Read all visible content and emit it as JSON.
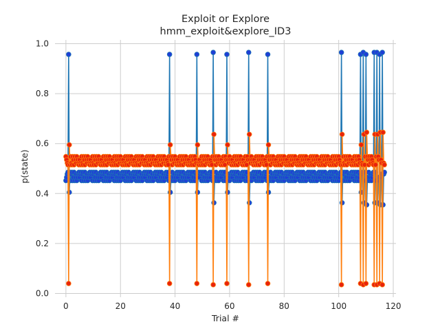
{
  "chart_data": {
    "type": "line",
    "title": "Exploit or Explore",
    "subtitle": "hmm_exploit&explore_ID3",
    "xlabel": "Trial #",
    "ylabel": "p(state)",
    "xlim": [
      -4,
      121
    ],
    "ylim": [
      -0.015,
      1.015
    ],
    "xticks": [
      0,
      20,
      40,
      60,
      80,
      100,
      120
    ],
    "yticks": [
      0.0,
      0.2,
      0.4,
      0.6,
      0.8,
      1.0
    ],
    "xtick_labels": [
      "0",
      "20",
      "40",
      "60",
      "80",
      "100",
      "120"
    ],
    "ytick_labels": [
      "0.0",
      "0.2",
      "0.4",
      "0.6",
      "0.8",
      "1.0"
    ],
    "grid": true,
    "legend": "none",
    "colors": {
      "series1_line": "#1f77b4",
      "series1_marker": "#1f3fd6",
      "series2_line": "#ff7f0e",
      "series2_marker": "#e8230c",
      "grid": "#cccccc"
    },
    "spikes": [
      {
        "x": 1,
        "high": 0.957,
        "low": 0.04,
        "next_high": 0.595,
        "next_low": 0.405
      },
      {
        "x": 38,
        "high": 0.957,
        "low": 0.04,
        "next_high": 0.595,
        "next_low": 0.405
      },
      {
        "x": 48,
        "high": 0.957,
        "low": 0.04,
        "next_high": 0.595,
        "next_low": 0.405
      },
      {
        "x": 54,
        "high": 0.965,
        "low": 0.035,
        "next_high": 0.637,
        "next_low": 0.363
      },
      {
        "x": 59,
        "high": 0.957,
        "low": 0.04,
        "next_high": 0.595,
        "next_low": 0.405
      },
      {
        "x": 67,
        "high": 0.965,
        "low": 0.035,
        "next_high": 0.637,
        "next_low": 0.363
      },
      {
        "x": 74,
        "high": 0.957,
        "low": 0.04,
        "next_high": 0.595,
        "next_low": 0.405
      },
      {
        "x": 101,
        "high": 0.965,
        "low": 0.035,
        "next_high": 0.637,
        "next_low": 0.363
      },
      {
        "x": 108,
        "high": 0.957,
        "low": 0.04,
        "next_high": 0.595,
        "next_low": 0.405
      },
      {
        "x": 109,
        "high": 0.965,
        "low": 0.035,
        "next_high": 0.637,
        "next_low": 0.363
      },
      {
        "x": 110,
        "high": 0.957,
        "low": 0.04,
        "next_high": 0.645,
        "next_low": 0.355
      },
      {
        "x": 113,
        "high": 0.965,
        "low": 0.035,
        "next_high": 0.637,
        "next_low": 0.363
      },
      {
        "x": 114,
        "high": 0.965,
        "low": 0.035,
        "next_high": 0.637,
        "next_low": 0.363
      },
      {
        "x": 115,
        "high": 0.957,
        "low": 0.04,
        "next_high": 0.645,
        "next_low": 0.355
      },
      {
        "x": 116,
        "high": 0.965,
        "low": 0.035,
        "next_high": 0.645,
        "next_low": 0.355
      }
    ],
    "baseline": {
      "x_start": 0,
      "x_end": 116,
      "series1_levels": [
        0.452,
        0.465,
        0.478,
        0.485
      ],
      "series2_levels": [
        0.548,
        0.535,
        0.522,
        0.515
      ],
      "substeps": [
        0.0,
        0.25,
        0.5,
        0.75
      ]
    },
    "series": [
      {
        "color_key": "series1"
      },
      {
        "color_key": "series2"
      }
    ]
  }
}
